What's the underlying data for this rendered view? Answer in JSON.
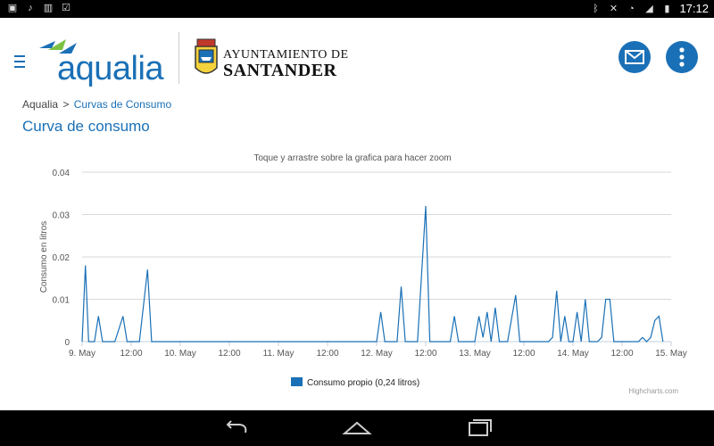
{
  "status_bar": {
    "time": "17:12",
    "icons_left": [
      "notification-icon",
      "music-icon",
      "barcode-icon",
      "clipboard-icon"
    ],
    "icons_right": [
      "bluetooth-icon",
      "mute-icon",
      "wifi-icon",
      "signal-icon",
      "battery-icon"
    ]
  },
  "header": {
    "brand": "aqualia",
    "partner_line1": "AYUNTAMIENTO DE",
    "partner_line2": "SANTANDER",
    "accent_color": "#1a70b6"
  },
  "breadcrumb": {
    "root": "Aqualia",
    "separator": ">",
    "current": "Curvas de Consumo"
  },
  "page_title": "Curva de consumo",
  "chart_data": {
    "type": "line",
    "subtitle": "Toque y arrastre sobre la grafica para hacer zoom",
    "ylabel": "Consumo en litros",
    "xlabel": "",
    "ylim": [
      0,
      0.04
    ],
    "yticks": [
      "0",
      "0.01",
      "0.02",
      "0.03",
      "0.04"
    ],
    "xticks": [
      "9. May",
      "12:00",
      "10. May",
      "12:00",
      "11. May",
      "12:00",
      "12. May",
      "12:00",
      "13. May",
      "12:00",
      "14. May",
      "12:00",
      "15. May"
    ],
    "x_hours_range": [
      0,
      144
    ],
    "grid": true,
    "legend_position": "bottom",
    "credits": "Highcharts.com",
    "series": [
      {
        "name": "Consumo propio (0,24 litros)",
        "color": "#1a70b6",
        "points": [
          [
            0,
            0
          ],
          [
            0.8,
            0.018
          ],
          [
            1.6,
            0
          ],
          [
            3,
            0
          ],
          [
            4,
            0.006
          ],
          [
            5,
            0
          ],
          [
            8,
            0
          ],
          [
            10,
            0.006
          ],
          [
            11,
            0
          ],
          [
            14,
            0
          ],
          [
            16,
            0.017
          ],
          [
            17,
            0
          ],
          [
            20,
            0
          ],
          [
            40,
            0
          ],
          [
            70,
            0
          ],
          [
            72,
            0
          ],
          [
            73,
            0.007
          ],
          [
            74,
            0
          ],
          [
            77,
            0
          ],
          [
            78,
            0.013
          ],
          [
            79,
            0
          ],
          [
            82,
            0
          ],
          [
            84,
            0.032
          ],
          [
            85,
            0
          ],
          [
            90,
            0
          ],
          [
            91,
            0.006
          ],
          [
            92,
            0
          ],
          [
            96,
            0
          ],
          [
            97,
            0.006
          ],
          [
            98,
            0.001
          ],
          [
            99,
            0.007
          ],
          [
            100,
            0
          ],
          [
            101,
            0.008
          ],
          [
            102,
            0
          ],
          [
            104,
            0
          ],
          [
            106,
            0.011
          ],
          [
            107,
            0
          ],
          [
            114,
            0
          ],
          [
            115,
            0.001
          ],
          [
            116,
            0.012
          ],
          [
            117,
            0
          ],
          [
            118,
            0.006
          ],
          [
            119,
            0
          ],
          [
            120,
            0
          ],
          [
            121,
            0.007
          ],
          [
            122,
            0
          ],
          [
            123,
            0.01
          ],
          [
            124,
            0
          ],
          [
            126,
            0
          ],
          [
            127,
            0.001
          ],
          [
            128,
            0.01
          ],
          [
            129,
            0.01
          ],
          [
            130,
            0
          ],
          [
            136,
            0
          ],
          [
            137,
            0.001
          ],
          [
            138,
            0
          ],
          [
            139,
            0.001
          ],
          [
            140,
            0.005
          ],
          [
            141,
            0.006
          ],
          [
            142,
            0
          ]
        ]
      }
    ]
  }
}
